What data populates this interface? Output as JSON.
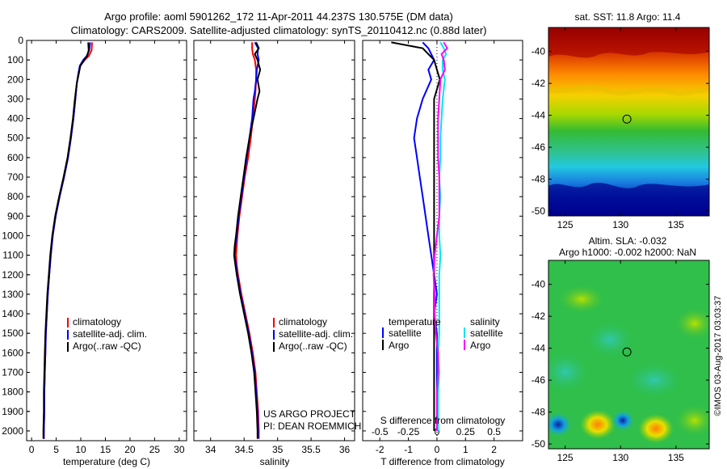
{
  "header": {
    "line1": "Argo profile: aoml 5901262_172 11-Apr-2011 44.237S 130.575E (DM data)",
    "line2": "Climatology: CARS2009. Satellite-adjusted climatology: synTS_20110412.nc (0.88d later)"
  },
  "depth_ticks": [
    "0",
    "100",
    "200",
    "300",
    "400",
    "500",
    "600",
    "700",
    "800",
    "900",
    "1000",
    "1100",
    "1200",
    "1300",
    "1400",
    "1500",
    "1600",
    "1700",
    "1800",
    "1900",
    "2000"
  ],
  "colors": {
    "climatology": "#ff0000",
    "satellite": "#0000ff",
    "argo": "#000000",
    "sal_satellite": "#00e5ee",
    "sal_argo": "#ff00ff"
  },
  "chart_data": [
    {
      "type": "line",
      "name": "temperature",
      "xlabel": "temperature (deg C)",
      "ylabel": "",
      "xlim": [
        -1,
        31.5
      ],
      "ylim": [
        2050,
        0
      ],
      "xticks": [
        0,
        5,
        10,
        15,
        20,
        25,
        30
      ],
      "legend": {
        "placement": "lower-middle",
        "entries": [
          "climatology",
          "satellite-adj. clim.",
          "Argo(..raw -QC)"
        ]
      },
      "depth": [
        10,
        50,
        80,
        100,
        130,
        170,
        220,
        300,
        400,
        500,
        600,
        700,
        800,
        900,
        1000,
        1100,
        1200,
        1300,
        1400,
        1500,
        1600,
        1700,
        1800,
        1900,
        2000,
        2040
      ],
      "series": [
        {
          "name": "climatology",
          "color": "#ff0000",
          "values": [
            12.3,
            12.2,
            11.6,
            10.8,
            9.9,
            9.5,
            9.2,
            8.9,
            8.5,
            8.0,
            7.4,
            6.6,
            5.7,
            4.9,
            4.3,
            3.9,
            3.6,
            3.3,
            3.1,
            2.9,
            2.8,
            2.7,
            2.6,
            2.6,
            2.5,
            2.5
          ]
        },
        {
          "name": "satellite-adj. clim.",
          "color": "#0000ff",
          "values": [
            11.9,
            11.7,
            11.2,
            10.5,
            9.8,
            9.5,
            9.2,
            8.9,
            8.5,
            8.0,
            7.4,
            6.6,
            5.7,
            4.9,
            4.3,
            3.9,
            3.6,
            3.3,
            3.1,
            2.9,
            2.8,
            2.7,
            2.6,
            2.6,
            2.5,
            2.5
          ]
        },
        {
          "name": "Argo(..raw -QC)",
          "color": "#000000",
          "values": [
            11.5,
            11.6,
            11.3,
            10.7,
            9.9,
            9.6,
            9.2,
            8.8,
            8.4,
            7.9,
            7.3,
            6.5,
            5.6,
            4.8,
            4.2,
            3.8,
            3.5,
            3.2,
            3.0,
            2.8,
            2.7,
            2.6,
            2.5,
            2.5,
            2.4,
            2.4
          ]
        }
      ]
    },
    {
      "type": "line",
      "name": "salinity",
      "xlabel": "salinity",
      "ylabel": "",
      "xlim": [
        33.75,
        36.15
      ],
      "ylim": [
        2050,
        0
      ],
      "xticks": [
        34,
        34.5,
        35,
        35.5,
        36
      ],
      "legend": {
        "placement": "lower-right",
        "entries": [
          "climatology",
          "satellite-adj. clim.",
          "Argo(..raw -QC)"
        ]
      },
      "depth": [
        10,
        40,
        70,
        100,
        150,
        200,
        260,
        300,
        400,
        500,
        600,
        700,
        800,
        900,
        1000,
        1050,
        1100,
        1150,
        1200,
        1300,
        1400,
        1500,
        1600,
        1700,
        1800,
        1900,
        2000,
        2040
      ],
      "series": [
        {
          "name": "climatology",
          "color": "#ff0000",
          "values": [
            34.62,
            34.62,
            34.63,
            34.66,
            34.68,
            34.68,
            34.67,
            34.66,
            34.63,
            34.6,
            34.56,
            34.51,
            34.47,
            34.43,
            34.4,
            34.39,
            34.38,
            34.39,
            34.41,
            34.46,
            34.52,
            34.58,
            34.63,
            34.67,
            34.69,
            34.71,
            34.72,
            34.72
          ]
        },
        {
          "name": "satellite-adj. clim.",
          "color": "#0000ff",
          "values": [
            34.66,
            34.71,
            34.7,
            34.72,
            34.69,
            34.68,
            34.66,
            34.64,
            34.62,
            34.58,
            34.54,
            34.5,
            34.46,
            34.42,
            34.39,
            34.37,
            34.36,
            34.38,
            34.4,
            34.45,
            34.51,
            34.57,
            34.62,
            34.66,
            34.68,
            34.7,
            34.71,
            34.71
          ]
        },
        {
          "name": "Argo(..raw -QC)",
          "color": "#000000",
          "values": [
            34.68,
            34.72,
            34.66,
            34.7,
            34.74,
            34.7,
            34.73,
            34.7,
            34.64,
            34.58,
            34.53,
            34.49,
            34.45,
            34.41,
            34.38,
            34.36,
            34.35,
            34.37,
            34.39,
            34.44,
            34.5,
            34.56,
            34.61,
            34.65,
            34.67,
            34.69,
            34.7,
            34.7
          ]
        }
      ]
    },
    {
      "type": "line",
      "name": "difference",
      "xlabel": "T difference from climatology",
      "ylabel": "",
      "x2label": "S difference from climatology",
      "xlim": [
        -2.6,
        3.0
      ],
      "ylim": [
        2050,
        0
      ],
      "xticks": [
        -2,
        -1,
        0,
        1,
        2
      ],
      "x2ticks": [
        -0.5,
        -0.25,
        0,
        0.25,
        0.5
      ],
      "legend": {
        "placement": "lower-middle",
        "entries": [
          "temperature",
          "satellite",
          "Argo",
          "salinity",
          "satellite",
          "Argo"
        ]
      },
      "depth": [
        10,
        40,
        70,
        100,
        150,
        200,
        300,
        400,
        500,
        600,
        700,
        800,
        900,
        1000,
        1100,
        1200,
        1300,
        1400,
        1500,
        1600,
        1700,
        1800,
        1900,
        2000
      ],
      "series": [
        {
          "name": "temperature satellite",
          "color": "#0000ff",
          "values": [
            -0.5,
            -0.3,
            -0.2,
            -0.1,
            -0.3,
            -0.2,
            -0.5,
            -0.7,
            -0.8,
            -0.7,
            -0.6,
            -0.5,
            -0.4,
            -0.3,
            -0.2,
            -0.1,
            0.0,
            -0.1,
            0.0,
            0.0,
            0.0,
            0.0,
            0.0,
            0.0
          ]
        },
        {
          "name": "temperature Argo",
          "color": "#000000",
          "values": [
            -1.6,
            -0.5,
            -0.3,
            -0.1,
            0.0,
            0.1,
            -0.1,
            -0.1,
            -0.1,
            -0.1,
            -0.1,
            -0.1,
            -0.1,
            -0.1,
            -0.1,
            -0.1,
            -0.1,
            -0.1,
            -0.1,
            -0.1,
            -0.1,
            -0.1,
            -0.1,
            -0.1
          ]
        },
        {
          "name": "salinity satellite",
          "color": "#00e5ee",
          "values": [
            0.03,
            0.06,
            0.08,
            0.05,
            0.05,
            0.07,
            0.05,
            0.04,
            0.03,
            0.03,
            0.02,
            0.03,
            0.02,
            0.02,
            0.03,
            0.02,
            0.02,
            0.02,
            0.02,
            0.01,
            0.02,
            0.01,
            0.01,
            0.01
          ]
        },
        {
          "name": "salinity Argo",
          "color": "#ff00ff",
          "values": [
            0.06,
            0.09,
            0.04,
            0.06,
            0.07,
            0.03,
            0.02,
            0.01,
            0.01,
            0.01,
            0.02,
            0.02,
            0.02,
            0.0,
            -0.02,
            -0.03,
            -0.02,
            -0.02,
            -0.01,
            0.01,
            0.01,
            0.0,
            0.0,
            0.0
          ]
        }
      ]
    },
    {
      "type": "heatmap",
      "name": "sst-map",
      "title": "sat. SST: 11.8 Argo: 11.4",
      "xlim": [
        123.5,
        138
      ],
      "ylim": [
        -50.3,
        -38.5
      ],
      "xticks": [
        125,
        130,
        135
      ],
      "yticks": [
        -40,
        -42,
        -44,
        -46,
        -48,
        -50
      ],
      "marker": {
        "lon": 130.575,
        "lat": -44.237
      }
    },
    {
      "type": "heatmap",
      "name": "sla-map",
      "title": "Altim. SLA: -0.032",
      "subtitle": "Argo h1000: -0.002 h2000: NaN",
      "xlim": [
        123.5,
        138
      ],
      "ylim": [
        -50.3,
        -38.5
      ],
      "xticks": [
        125,
        130,
        135
      ],
      "yticks": [
        -40,
        -42,
        -44,
        -46,
        -48,
        -50
      ],
      "marker": {
        "lon": 130.575,
        "lat": -44.237
      }
    }
  ],
  "annotations": {
    "project": "US ARGO PROJECT",
    "pi": "PI: DEAN ROEMMICH",
    "legend_temperature": "temperature",
    "legend_salinity": "salinity",
    "credit": "©IMOS 03-Aug-2017 03:03:37"
  }
}
